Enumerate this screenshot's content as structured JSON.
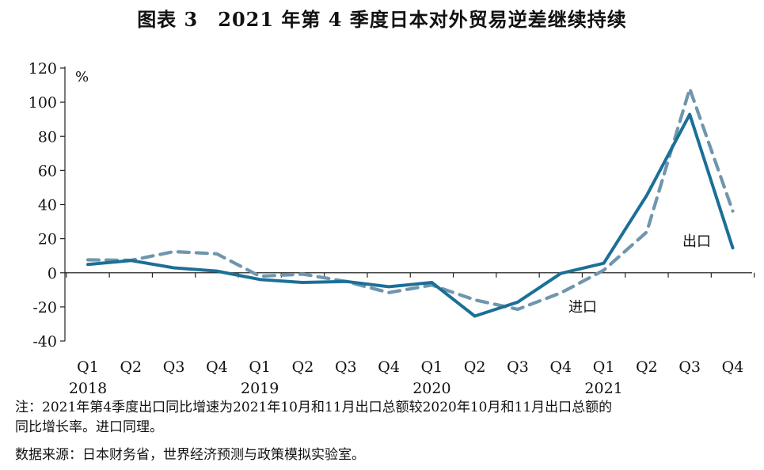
{
  "title": "图表 3　2021 年第 4 季度日本对外贸易逆差继续持续",
  "chart_data": {
    "type": "line",
    "title": "图表 3　2021 年第 4 季度日本对外贸易逆差继续持续",
    "unit_label": "%",
    "ylim": [
      -40,
      120
    ],
    "yticks": [
      -40,
      -20,
      0,
      20,
      40,
      60,
      80,
      100,
      120
    ],
    "ytick_labels": [
      "-40",
      "-20",
      "0",
      "20",
      "40",
      "60",
      "80",
      "100",
      "120"
    ],
    "categories": [
      "Q1",
      "Q2",
      "Q3",
      "Q4",
      "Q1",
      "Q2",
      "Q3",
      "Q4",
      "Q1",
      "Q2",
      "Q3",
      "Q4",
      "Q1",
      "Q2",
      "Q3",
      "Q4"
    ],
    "years": [
      "2018",
      "2019",
      "2020",
      "2021"
    ],
    "grid": false,
    "series": [
      {
        "name": "出口",
        "style": "solid",
        "color": "#1c6f97",
        "values": [
          4.9,
          7.2,
          2.9,
          1.0,
          -3.9,
          -5.7,
          -5.1,
          -8.2,
          -5.7,
          -25.4,
          -17.2,
          -0.4,
          5.6,
          45.4,
          92.8,
          14.6
        ]
      },
      {
        "name": "进口",
        "style": "dashed",
        "color": "#6f96ad",
        "values": [
          7.6,
          7.3,
          12.4,
          11.1,
          -2.0,
          -0.8,
          -5.1,
          -11.6,
          -7.2,
          -15.9,
          -21.4,
          -11.8,
          1.5,
          23.9,
          107.9,
          36.2
        ]
      }
    ]
  },
  "notes": {
    "line1": "注：2021年第4季度出口同比增速为2021年10月和11月出口总额较2020年10月和11月出口总额的",
    "line2": "同比增长率。进口同理。",
    "source": "数据来源：日本财务省，世界经济预测与政策模拟实验室。"
  }
}
